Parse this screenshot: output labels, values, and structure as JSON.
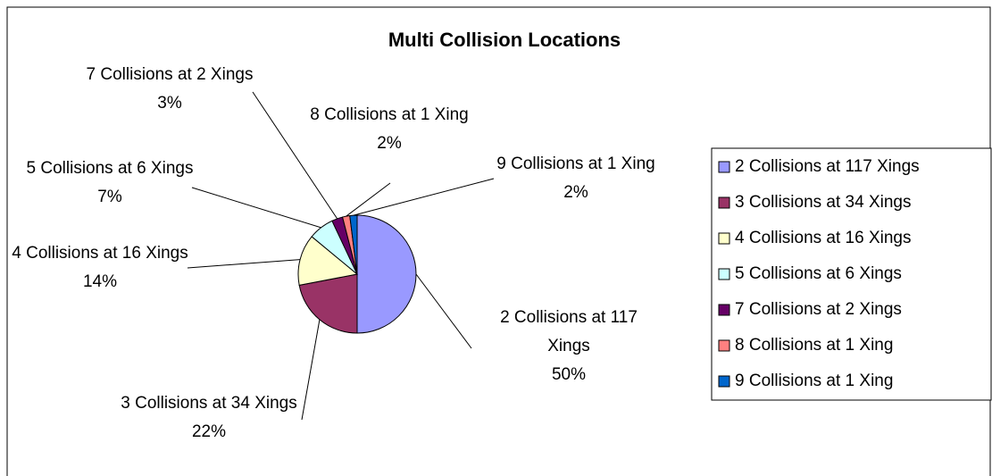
{
  "chart_data": {
    "type": "pie",
    "title": "Multi Collision Locations",
    "categories": [
      "2 Collisions at 117 Xings",
      "3 Collisions at 34 Xings",
      "4 Collisions at 16 Xings",
      "5 Collisions at 6 Xings",
      "7 Collisions at 2 Xings",
      "8 Collisions at 1 Xing",
      "9 Collisions at 1 Xing"
    ],
    "values": [
      50,
      22,
      14,
      7,
      3,
      2,
      2
    ],
    "value_labels": [
      "50%",
      "22%",
      "14%",
      "7%",
      "3%",
      "2%",
      "2%"
    ],
    "colors": [
      "#9999ff",
      "#993366",
      "#ffffcc",
      "#ccffff",
      "#660066",
      "#ff8080",
      "#0066cc"
    ],
    "legend": "right"
  }
}
